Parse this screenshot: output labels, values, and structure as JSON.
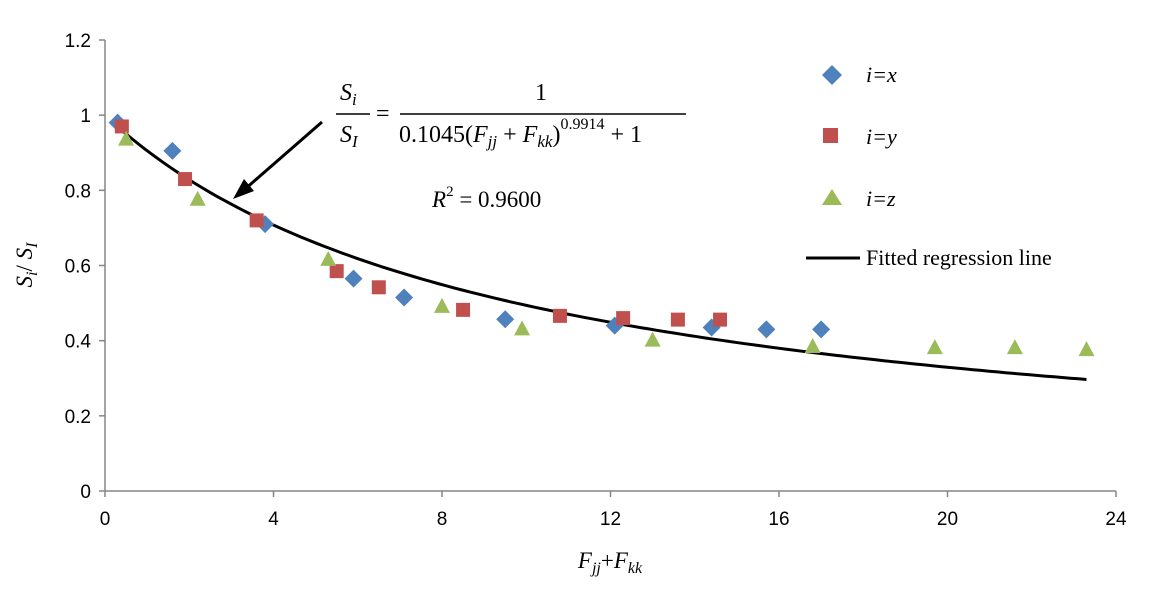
{
  "chart_data": {
    "type": "scatter",
    "xlim": [
      0,
      24
    ],
    "ylim": [
      0,
      1.2
    ],
    "x_ticks": [
      "0",
      "4",
      "8",
      "12",
      "16",
      "20",
      "24"
    ],
    "y_ticks": [
      "0",
      "0.2",
      "0.4",
      "0.6",
      "0.8",
      "1",
      "1.2"
    ],
    "grid": false,
    "legend_position": "top-right",
    "xlabel": {
      "a": "F",
      "a_sub": "jj",
      "plus": "+",
      "b": "F",
      "b_sub": "kk"
    },
    "ylabel": {
      "a": "S",
      "a_sub": "i",
      "slash": "/ ",
      "b": "S",
      "b_sub": "I"
    },
    "series": [
      {
        "name": "i=x",
        "marker": "diamond",
        "color": "#4F81BD",
        "points": [
          [
            0.3,
            0.98
          ],
          [
            1.6,
            0.905
          ],
          [
            3.8,
            0.71
          ],
          [
            5.9,
            0.565
          ],
          [
            7.1,
            0.515
          ],
          [
            9.5,
            0.457
          ],
          [
            12.1,
            0.44
          ],
          [
            14.4,
            0.435
          ],
          [
            15.7,
            0.43
          ],
          [
            17.0,
            0.43
          ]
        ]
      },
      {
        "name": "i=y",
        "marker": "square",
        "color": "#C0504D",
        "points": [
          [
            0.4,
            0.97
          ],
          [
            1.9,
            0.83
          ],
          [
            3.6,
            0.72
          ],
          [
            5.5,
            0.585
          ],
          [
            6.5,
            0.542
          ],
          [
            8.5,
            0.482
          ],
          [
            10.8,
            0.466
          ],
          [
            12.3,
            0.46
          ],
          [
            13.6,
            0.456
          ],
          [
            14.6,
            0.456
          ]
        ]
      },
      {
        "name": "i=z",
        "marker": "triangle",
        "color": "#9BBB59",
        "points": [
          [
            0.5,
            0.935
          ],
          [
            2.2,
            0.775
          ],
          [
            5.3,
            0.615
          ],
          [
            8.0,
            0.49
          ],
          [
            9.9,
            0.43
          ],
          [
            13.0,
            0.4
          ],
          [
            16.8,
            0.383
          ],
          [
            19.7,
            0.38
          ],
          [
            21.6,
            0.38
          ],
          [
            23.3,
            0.375
          ]
        ]
      },
      {
        "name": "Fitted regression line",
        "marker": "line",
        "color": "#000000",
        "x_range": [
          0.2,
          23.3
        ],
        "model": {
          "a": 0.1045,
          "b": 0.9914,
          "c": 1
        }
      }
    ],
    "annotation": {
      "eq_num_a": "S",
      "eq_num_a_sub": "i",
      "eq_den_a": "S",
      "eq_den_a_sub": "I",
      "eq_equals": "=",
      "eq_rhs_num": "1",
      "eq_rhs_coef": "0.1045(",
      "eq_rhs_F1": "F",
      "eq_rhs_F1_sub": "jj",
      "eq_rhs_plus": " + ",
      "eq_rhs_F2": "F",
      "eq_rhs_F2_sub": "kk",
      "eq_rhs_close": ")",
      "eq_rhs_exp": "0.9914",
      "eq_rhs_tail": " + 1",
      "r2_label": "R",
      "r2_sup": "2",
      "r2_value": " = 0.9600"
    }
  }
}
